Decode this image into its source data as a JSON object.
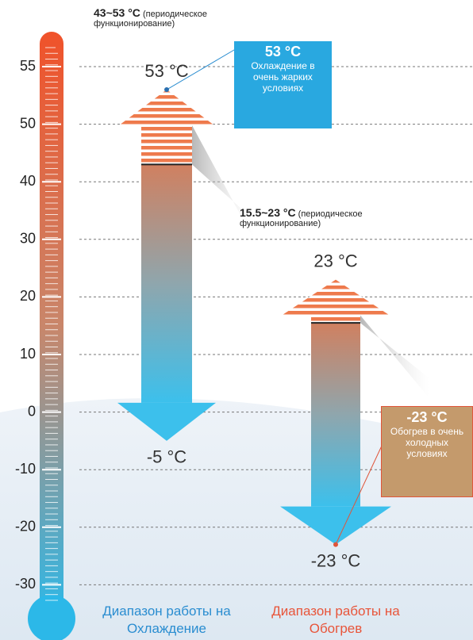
{
  "scale_ticks": [
    55,
    50,
    40,
    30,
    20,
    10,
    0,
    -10,
    -20,
    -30
  ],
  "cooling": {
    "max": 53,
    "min": -5,
    "periodic_min": 43,
    "note_value": "43~53 °C",
    "note_text": "(периодическое функционирование)",
    "max_label": "53 °C",
    "min_label": "-5 °C",
    "callout_value": "53 °C",
    "callout_text": "Охлаждение в очень жарких условиях",
    "caption": "Диапазон работы на Охлаждение"
  },
  "heating": {
    "max": 23,
    "min": -23,
    "periodic_min": 15.5,
    "note_value": "15.5~23 °C",
    "note_text": "(периодическое функционирование)",
    "max_label": "23 °C",
    "min_label": "-23 °C",
    "callout_value": "-23 °C",
    "callout_text": "Обогрев в очень холодных условиях",
    "caption": "Диапазон работы на Обогрев"
  }
}
